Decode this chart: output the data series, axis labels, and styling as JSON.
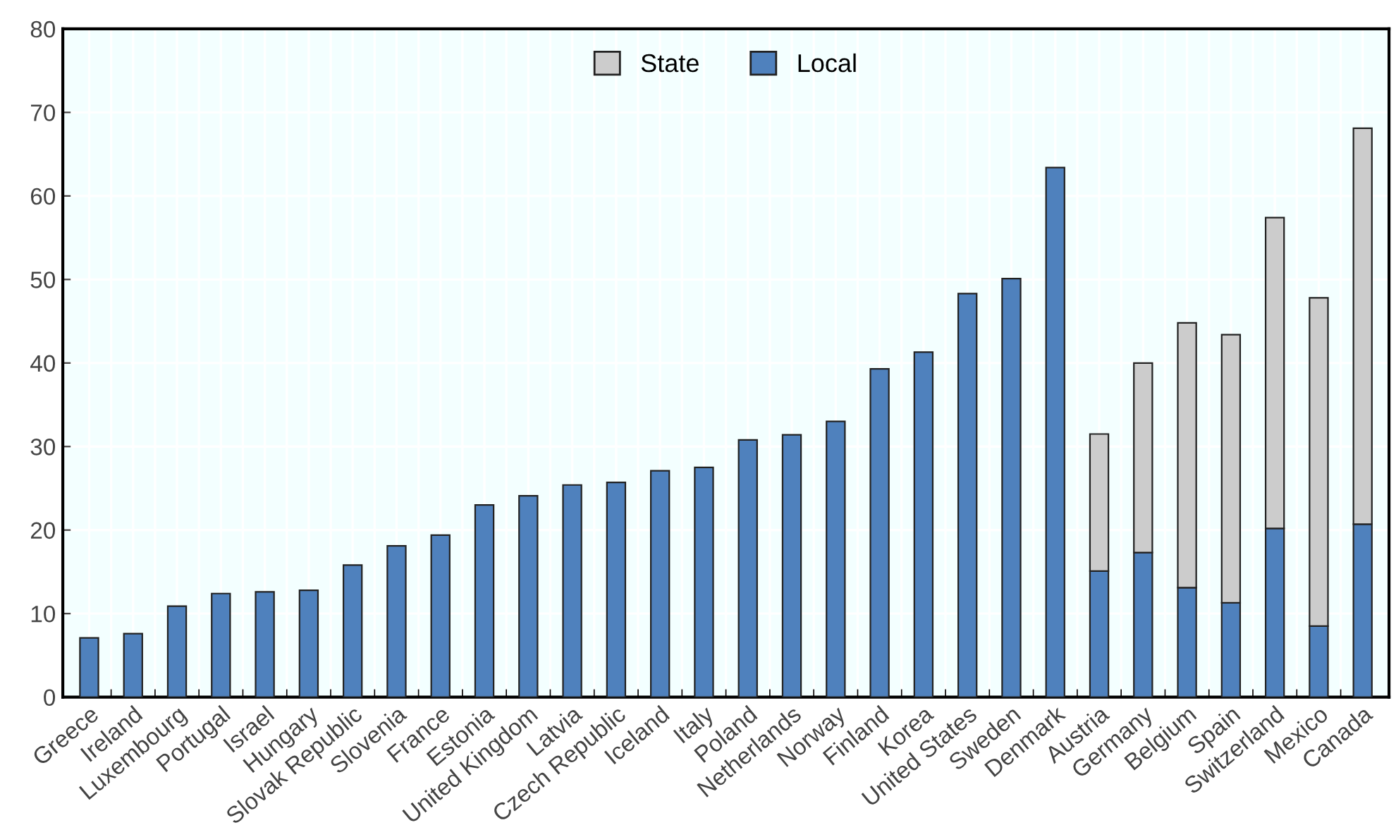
{
  "chart_data": {
    "type": "bar",
    "stacked": true,
    "categories": [
      "Greece",
      "Ireland",
      "Luxembourg",
      "Portugal",
      "Israel",
      "Hungary",
      "Slovak Republic",
      "Slovenia",
      "France",
      "Estonia",
      "United Kingdom",
      "Latvia",
      "Czech Republic",
      "Iceland",
      "Italy",
      "Poland",
      "Netherlands",
      "Norway",
      "Finland",
      "Korea",
      "United States",
      "Sweden",
      "Denmark",
      "Austria",
      "Germany",
      "Belgium",
      "Spain",
      "Switzerland",
      "Mexico",
      "Canada"
    ],
    "series": [
      {
        "name": "Local",
        "color": "#4f81bd",
        "values": [
          7.1,
          7.6,
          10.9,
          12.4,
          12.6,
          12.8,
          15.8,
          18.1,
          19.4,
          23.0,
          24.1,
          25.4,
          25.7,
          27.1,
          27.5,
          30.8,
          31.4,
          33.0,
          39.3,
          41.3,
          48.3,
          50.1,
          63.4,
          15.1,
          17.3,
          13.1,
          11.3,
          20.2,
          8.5,
          20.7
        ]
      },
      {
        "name": "State",
        "color": "#cccccc",
        "values": [
          null,
          null,
          null,
          null,
          null,
          null,
          null,
          null,
          null,
          null,
          null,
          null,
          null,
          null,
          null,
          null,
          null,
          null,
          null,
          null,
          null,
          null,
          null,
          16.4,
          22.7,
          31.7,
          32.1,
          37.2,
          39.3,
          47.4
        ]
      }
    ],
    "ylim": [
      0,
      80
    ],
    "yticks": [
      0,
      10,
      20,
      30,
      40,
      50,
      60,
      70,
      80
    ],
    "grid": true,
    "legend": "top"
  }
}
